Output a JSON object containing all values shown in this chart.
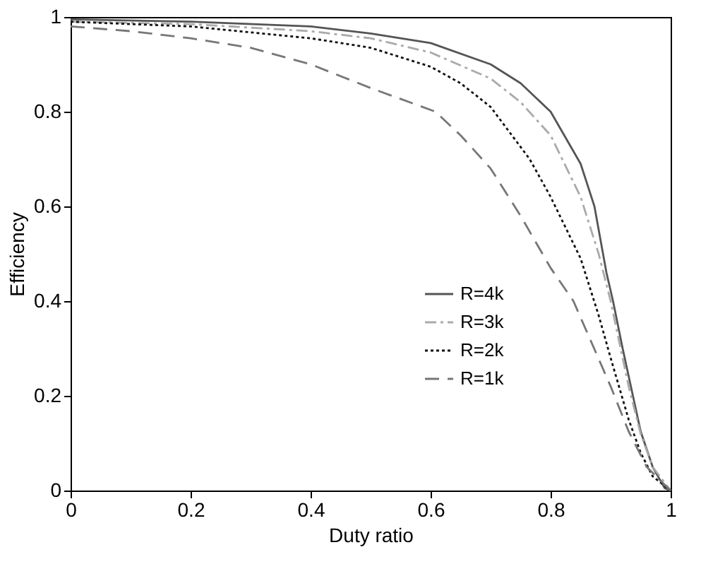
{
  "chart_data": {
    "type": "line",
    "xlabel": "Duty ratio",
    "ylabel": "Efficiency",
    "xlim": [
      0,
      1
    ],
    "ylim": [
      0,
      1
    ],
    "xticks": [
      0,
      0.2,
      0.4,
      0.6,
      0.8,
      1
    ],
    "yticks": [
      0,
      0.2,
      0.4,
      0.6,
      0.8,
      1
    ],
    "grid": false,
    "legend": "bottom right",
    "marker": "none",
    "series": [
      {
        "name": "R=4k",
        "color": "#555555",
        "line_style": "solid",
        "x": [
          0,
          0.2,
          0.4,
          0.5,
          0.6,
          0.7,
          0.75,
          0.8,
          0.85,
          0.873,
          0.893,
          0.904,
          0.92,
          0.95,
          0.97,
          0.99,
          1
        ],
        "values": [
          0.995,
          0.99,
          0.98,
          0.965,
          0.945,
          0.9,
          0.86,
          0.8,
          0.69,
          0.6,
          0.46,
          0.4,
          0.3,
          0.125,
          0.05,
          0.005,
          0
        ]
      },
      {
        "name": "R=3k",
        "color": "#aaaaaa",
        "line_style": "dashdot",
        "x": [
          0,
          0.2,
          0.4,
          0.5,
          0.6,
          0.7,
          0.75,
          0.8,
          0.85,
          0.88,
          0.9,
          0.93,
          0.95,
          0.97,
          1
        ],
        "values": [
          0.99,
          0.985,
          0.97,
          0.955,
          0.925,
          0.87,
          0.82,
          0.75,
          0.62,
          0.5,
          0.4,
          0.22,
          0.12,
          0.05,
          0
        ]
      },
      {
        "name": "R=2k",
        "color": "#111111",
        "line_style": "dotted",
        "x": [
          0,
          0.2,
          0.4,
          0.5,
          0.6,
          0.65,
          0.7,
          0.765,
          0.8,
          0.85,
          0.88,
          0.9,
          0.93,
          0.95,
          0.97,
          1
        ],
        "values": [
          0.99,
          0.98,
          0.955,
          0.935,
          0.895,
          0.86,
          0.81,
          0.7,
          0.62,
          0.49,
          0.37,
          0.28,
          0.15,
          0.08,
          0.03,
          0
        ]
      },
      {
        "name": "R=1k",
        "color": "#777777",
        "line_style": "dashed",
        "x": [
          0,
          0.1,
          0.2,
          0.3,
          0.4,
          0.5,
          0.608,
          0.65,
          0.7,
          0.75,
          0.8,
          0.838,
          0.9,
          0.93,
          0.96,
          1
        ],
        "values": [
          0.98,
          0.97,
          0.955,
          0.935,
          0.9,
          0.85,
          0.8,
          0.75,
          0.68,
          0.58,
          0.47,
          0.4,
          0.22,
          0.125,
          0.05,
          0
        ]
      }
    ]
  }
}
